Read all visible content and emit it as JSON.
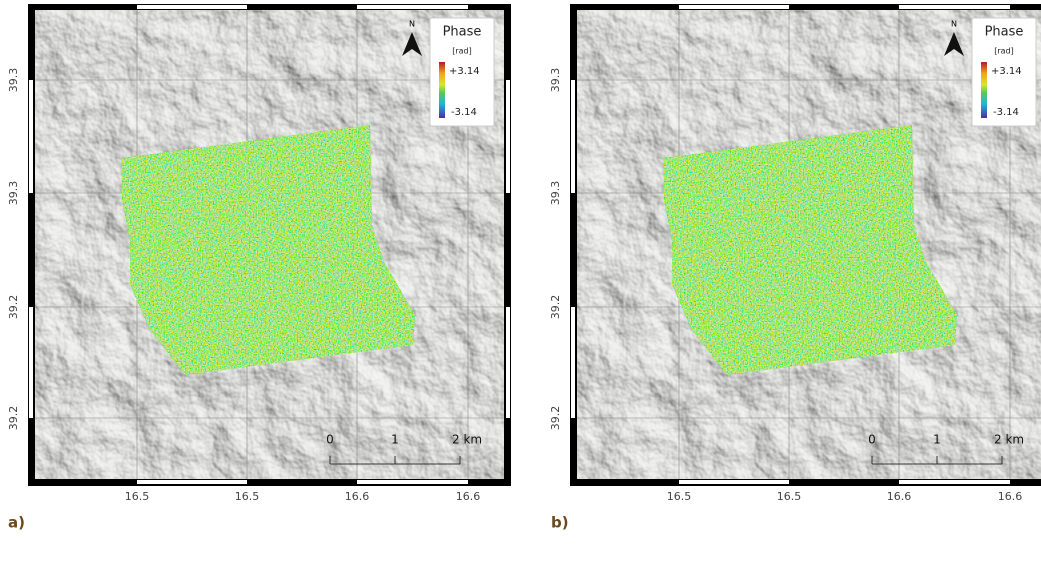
{
  "panels": [
    {
      "label": "a)",
      "lat_ticks": [
        "39.3",
        "39.3",
        "39.2",
        "39.2"
      ],
      "lon_ticks": [
        "16.5",
        "16.5",
        "16.6",
        "16.6"
      ],
      "legend": {
        "title": "Phase",
        "unit": "[rad]",
        "max": "+3.14",
        "min": "-3.14"
      },
      "north": "N",
      "scale": [
        "0",
        "1",
        "2 km"
      ]
    },
    {
      "label": "b)",
      "lat_ticks": [
        "39.3",
        "39.3",
        "39.2",
        "39.2"
      ],
      "lon_ticks": [
        "16.5",
        "16.5",
        "16.6",
        "16.6"
      ],
      "legend": {
        "title": "Phase",
        "unit": "[rad]",
        "max": "+3.14",
        "min": "-3.14"
      },
      "north": "N",
      "scale": [
        "0",
        "1",
        "2 km"
      ]
    }
  ]
}
